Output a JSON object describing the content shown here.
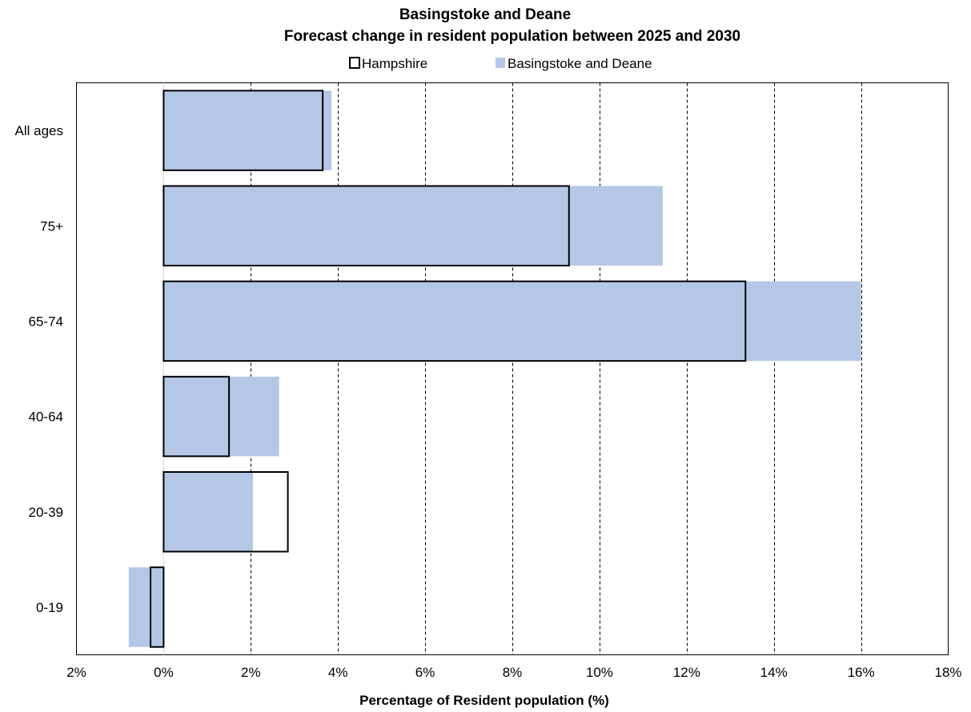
{
  "chart_data": {
    "type": "bar",
    "orientation": "horizontal",
    "title": "Basingstoke and Deane",
    "subtitle": "Forecast change in resident population between 2025 and 2030",
    "xlabel": "Percentage of Resident population (%)",
    "ylabel": "",
    "categories": [
      "All ages",
      "75+",
      "65-74",
      "40-64",
      "20-39",
      "0-19"
    ],
    "xlim": [
      -2,
      18
    ],
    "x_ticks": [
      -2,
      0,
      2,
      4,
      6,
      8,
      10,
      12,
      14,
      16,
      18
    ],
    "x_tick_labels": [
      "2%",
      "0%",
      "2%",
      "4%",
      "6%",
      "8%",
      "10%",
      "12%",
      "14%",
      "16%",
      "18%"
    ],
    "grid": "vertical dashed",
    "legend_position": "top",
    "series": [
      {
        "name": "Hampshire",
        "style": "outline",
        "color": "#000000",
        "values": [
          3.65,
          9.3,
          13.35,
          1.5,
          2.85,
          -0.3
        ]
      },
      {
        "name": "Basingstoke and Deane",
        "style": "filled",
        "color": "#b4c7e7",
        "values": [
          3.85,
          11.45,
          16.0,
          2.65,
          2.05,
          -0.8
        ]
      }
    ]
  }
}
